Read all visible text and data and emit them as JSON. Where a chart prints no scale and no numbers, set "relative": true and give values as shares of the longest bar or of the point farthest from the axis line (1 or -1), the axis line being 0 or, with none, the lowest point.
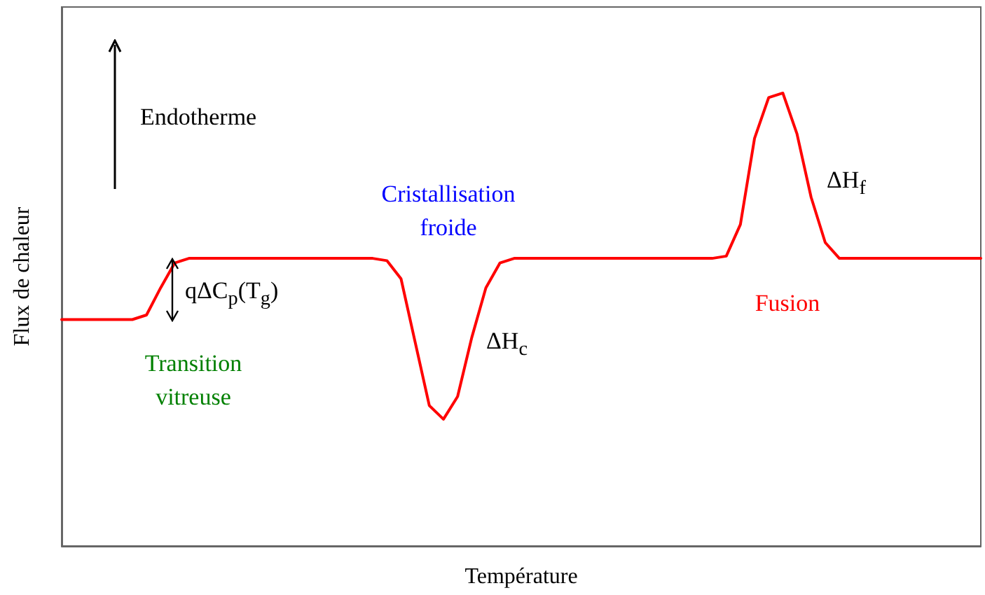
{
  "chart_data": {
    "type": "line",
    "relative": true,
    "xlabel": "Température",
    "ylabel": "Flux de chaleur",
    "grid": false,
    "marker": "none",
    "line_style": "solid",
    "categories": [
      null,
      null,
      null,
      null,
      null,
      null,
      null,
      null,
      null,
      null,
      null,
      null,
      null,
      null,
      null,
      null,
      null,
      null,
      null,
      null,
      null,
      null,
      null,
      null,
      null,
      null,
      null,
      null,
      null,
      null,
      null,
      null,
      null,
      null,
      null,
      null,
      null,
      null,
      null,
      null,
      null,
      null,
      null,
      null,
      null,
      null,
      null,
      null,
      null,
      null,
      null,
      null,
      null,
      null,
      null,
      null,
      null,
      null,
      null,
      null,
      null,
      null,
      null,
      null,
      null,
      null
    ],
    "series": [
      {
        "color": "#ff0000",
        "values": [
          0.5,
          0.5,
          0.5,
          0.5,
          0.5,
          0.5,
          0.51,
          0.57,
          0.625,
          0.635,
          0.635,
          0.635,
          0.635,
          0.635,
          0.635,
          0.635,
          0.635,
          0.635,
          0.635,
          0.635,
          0.635,
          0.635,
          0.635,
          0.63,
          0.59,
          0.45,
          0.31,
          0.28,
          0.33,
          0.46,
          0.57,
          0.625,
          0.635,
          0.635,
          0.635,
          0.635,
          0.635,
          0.635,
          0.635,
          0.635,
          0.635,
          0.635,
          0.635,
          0.635,
          0.635,
          0.635,
          0.635,
          0.64,
          0.71,
          0.9,
          0.99,
          1,
          0.91,
          0.77,
          0.67,
          0.635,
          0.635,
          0.635,
          0.635,
          0.635,
          0.635,
          0.635,
          0.635,
          0.635,
          0.635,
          0.635
        ]
      }
    ],
    "annotations": [
      "Endotherme",
      "Cristallisation\nfroide",
      "ΔH$_{c}$",
      "ΔH$_{f}$",
      "Fusion",
      "Transition\nvitreuse",
      "qΔC$_{p}$(T$_{g}$)"
    ]
  }
}
